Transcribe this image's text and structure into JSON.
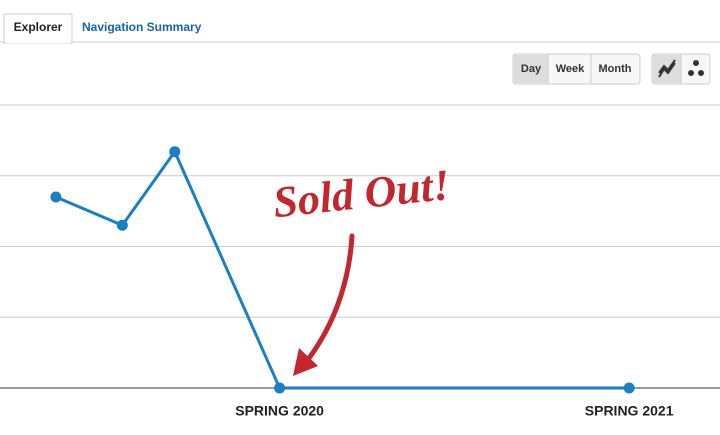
{
  "tabs": [
    "Explorer",
    "Navigation Summary"
  ],
  "buttons": [
    "Day",
    "Week",
    "Month"
  ],
  "chart_data": {
    "type": "line",
    "x": [
      2019.36,
      2019.55,
      2019.7,
      2020,
      2021
    ],
    "series": [
      {
        "color": "#1b7fc0",
        "values": [
          2.7,
          2.3,
          3.34,
          0,
          0
        ]
      }
    ],
    "xlim": [
      2019.2,
      2021.26
    ],
    "xticks": [
      {
        "value": 2020,
        "label": "SPRING 2020"
      },
      {
        "value": 2021,
        "label": "SPRING 2021"
      }
    ],
    "ylim": [
      0,
      4
    ],
    "yticks": [
      0,
      1,
      2,
      3,
      4
    ],
    "grid": true,
    "annotations": [
      "Sold Out!"
    ]
  }
}
